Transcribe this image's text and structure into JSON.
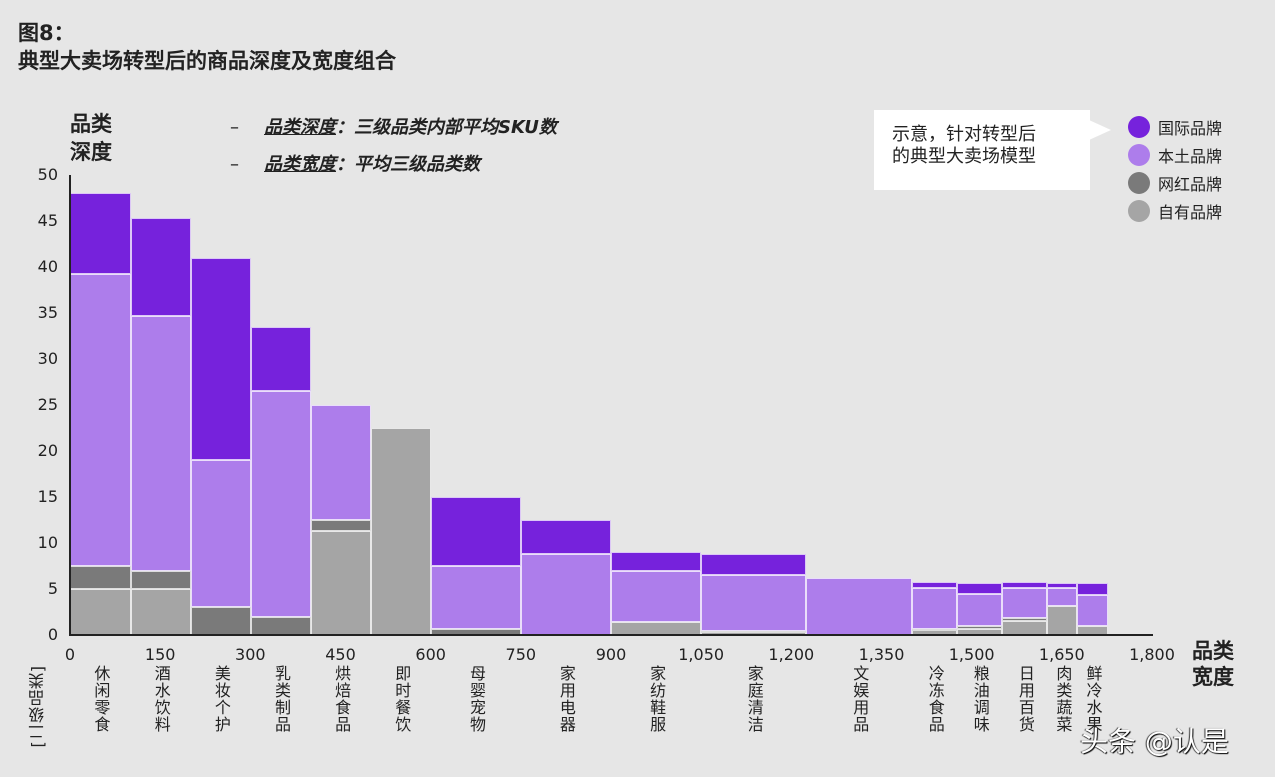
{
  "title": {
    "line1": "图8：",
    "line2": "典型大卖场转型后的商品深度及宽度组合"
  },
  "definitions": [
    {
      "dash": "–",
      "term": "品类深度",
      "text": "：三级品类内部平均SKU数"
    },
    {
      "dash": "–",
      "term": "品类宽度",
      "text": "：平均三级品类数"
    }
  ],
  "callout": {
    "line1": "示意，针对转型后",
    "line2": "的典型大卖场模型"
  },
  "legend": [
    {
      "label": "国际品牌",
      "color": "#7622dc"
    },
    {
      "label": "本土品牌",
      "color": "#ad7deb"
    },
    {
      "label": "网红品牌",
      "color": "#7a7a7a"
    },
    {
      "label": "自有品牌",
      "color": "#a5a5a5"
    }
  ],
  "axis": {
    "ylabel_line1": "品类",
    "ylabel_line2": "深度",
    "xlabel_line1": "品类",
    "xlabel_line2": "宽度",
    "category_axis_label": "[二级品类]",
    "yticks": [
      "0",
      "5",
      "10",
      "15",
      "20",
      "25",
      "30",
      "35",
      "40",
      "45",
      "50"
    ],
    "xticks": [
      "0",
      "150",
      "300",
      "450",
      "600",
      "750",
      "900",
      "1,050",
      "1,200",
      "1,350",
      "1,500",
      "1,650",
      "1,800"
    ]
  },
  "watermark": "头条 @认是",
  "chart_data": {
    "type": "bar",
    "subtype": "variable-width stacked (marimekko)",
    "title": "典型大卖场转型后的商品深度及宽度组合",
    "xlabel": "品类宽度",
    "ylabel": "品类深度",
    "xlim": [
      0,
      1800
    ],
    "ylim": [
      0,
      50
    ],
    "grid": false,
    "legend_position": "top-right",
    "series_names": [
      "自有品牌",
      "网红品牌",
      "本土品牌",
      "国际品牌"
    ],
    "categories": [
      "休闲零食",
      "酒水饮料",
      "美妆个护",
      "乳类制品",
      "烘焙食品",
      "即时餐饮",
      "母婴宠物",
      "家用电器",
      "家纺鞋服",
      "家庭清洁",
      "文娱用品",
      "冷冻食品",
      "粮油调味",
      "日用百货",
      "肉类蔬菜",
      "鲜冷水果"
    ],
    "bars": [
      {
        "category": "休闲零食",
        "x0": 0,
        "x1": 101,
        "自有品牌": 5.0,
        "网红品牌": 2.5,
        "本土品牌": 31.7,
        "国际品牌": 8.8,
        "total": 48.0
      },
      {
        "category": "酒水饮料",
        "x0": 101,
        "x1": 201,
        "自有品牌": 5.0,
        "网红品牌": 2.0,
        "本土品牌": 27.7,
        "国际品牌": 10.6,
        "total": 45.3
      },
      {
        "category": "美妆个护",
        "x0": 201,
        "x1": 301,
        "自有品牌": 0,
        "网红品牌": 3.0,
        "本土品牌": 16.0,
        "国际品牌": 22.0,
        "total": 41.0
      },
      {
        "category": "乳类制品",
        "x0": 301,
        "x1": 401,
        "自有品牌": 0,
        "网红品牌": 2.0,
        "本土品牌": 24.5,
        "国际品牌": 7.0,
        "total": 33.5
      },
      {
        "category": "烘焙食品",
        "x0": 401,
        "x1": 501,
        "自有品牌": 11.3,
        "网红品牌": 1.2,
        "本土品牌": 12.5,
        "国际品牌": 0,
        "total": 25.0
      },
      {
        "category": "即时餐饮",
        "x0": 501,
        "x1": 601,
        "自有品牌": 22.5,
        "网红品牌": 0,
        "本土品牌": 0,
        "国际品牌": 0,
        "total": 22.5
      },
      {
        "category": "母婴宠物",
        "x0": 601,
        "x1": 750,
        "自有品牌": 0,
        "网红品牌": 0.7,
        "本土品牌": 6.8,
        "国际品牌": 7.5,
        "total": 15.0
      },
      {
        "category": "家用电器",
        "x0": 750,
        "x1": 900,
        "自有品牌": 0,
        "网红品牌": 0,
        "本土品牌": 8.8,
        "国际品牌": 3.7,
        "total": 12.5
      },
      {
        "category": "家纺鞋服",
        "x0": 900,
        "x1": 1050,
        "自有品牌": 1.4,
        "网红品牌": 0,
        "本土品牌": 5.6,
        "国际品牌": 2.0,
        "total": 9.0
      },
      {
        "category": "家庭清洁",
        "x0": 1050,
        "x1": 1225,
        "自有品牌": 0.3,
        "网红品牌": 0.1,
        "本土品牌": 6.1,
        "国际品牌": 2.3,
        "total": 8.8
      },
      {
        "category": "文娱用品",
        "x0": 1225,
        "x1": 1401,
        "自有品牌": 0,
        "网红品牌": 0,
        "本土品牌": 6.2,
        "国际品牌": 0,
        "total": 6.2
      },
      {
        "category": "冷冻食品",
        "x0": 1401,
        "x1": 1476,
        "自有品牌": 0.5,
        "网红品牌": 0.1,
        "本土品牌": 4.5,
        "国际品牌": 0.7,
        "total": 5.8
      },
      {
        "category": "粮油调味",
        "x0": 1476,
        "x1": 1551,
        "自有品牌": 0.6,
        "网红品牌": 0.4,
        "本土品牌": 3.5,
        "国际品牌": 1.1,
        "total": 5.6
      },
      {
        "category": "日用百货",
        "x0": 1551,
        "x1": 1626,
        "自有品牌": 1.5,
        "网红品牌": 0.3,
        "本土品牌": 3.3,
        "国际品牌": 0.7,
        "total": 5.8
      },
      {
        "category": "肉类蔬菜",
        "x0": 1626,
        "x1": 1676,
        "自有品牌": 3.2,
        "网红品牌": 0,
        "本土品牌": 1.9,
        "国际品牌": 0.5,
        "total": 5.6
      },
      {
        "category": "鲜冷水果",
        "x0": 1676,
        "x1": 1726,
        "自有品牌": 1.0,
        "网红品牌": 0,
        "本土品牌": 3.3,
        "国际品牌": 1.3,
        "total": 5.6
      }
    ]
  }
}
